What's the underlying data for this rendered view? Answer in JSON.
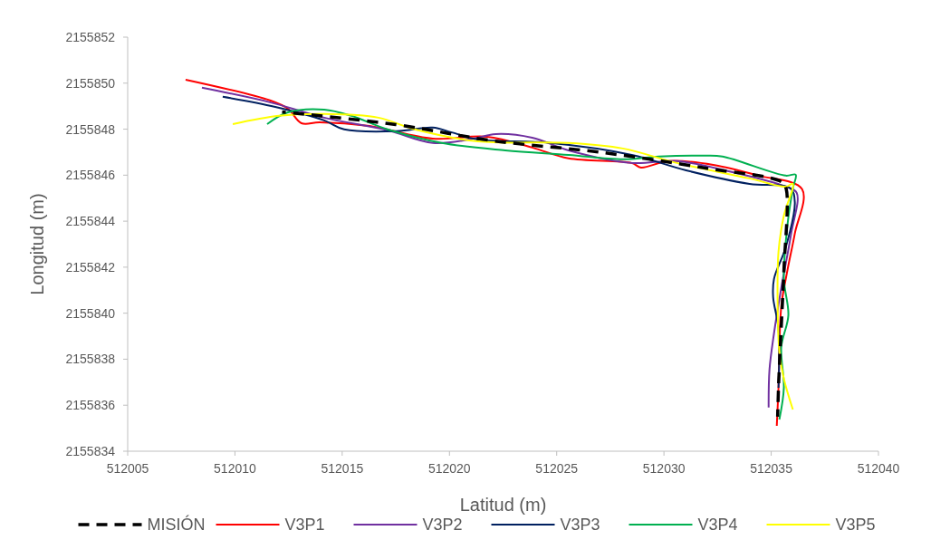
{
  "chart_data": {
    "type": "line",
    "xlabel": "Latitud (m)",
    "ylabel": "Longitud (m)",
    "xlim": [
      512005,
      512040
    ],
    "ylim": [
      2155834,
      2155852
    ],
    "xticks": [
      512005,
      512010,
      512015,
      512020,
      512025,
      512030,
      512035,
      512040
    ],
    "yticks": [
      2155834,
      2155836,
      2155838,
      2155840,
      2155842,
      2155844,
      2155846,
      2155848,
      2155850,
      2155852
    ],
    "grid": false,
    "legend": "bottom",
    "series": [
      {
        "name": "MISIÓN",
        "color": "#000000",
        "line_style": "dashed",
        "x": [
          512012.2,
          512017.5,
          512022,
          512027,
          512032,
          512035.5,
          512035.7,
          512035.6,
          512035.5,
          512035.35,
          512035.3
        ],
        "values": [
          2155848.75,
          2155848.2,
          2155847.5,
          2155847.0,
          2155846.3,
          2155845.7,
          2155845.4,
          2155842,
          2155840,
          2155837,
          2155835.5
        ]
      },
      {
        "name": "V3P1",
        "color": "#ff0000",
        "line_style": "solid",
        "x": [
          512007.7,
          512011.63,
          512012.47,
          512013.1,
          512013.95,
          512016.27,
          512019.22,
          512021.75,
          512023.86,
          512025.55,
          512028.5,
          512028.93,
          512030.19,
          512032.3,
          512034.41,
          512036.44,
          512036.1,
          512035.76,
          512035.47,
          512035.34,
          512035.26
        ],
        "values": [
          2155850.15,
          2155849.25,
          2155848.89,
          2155848.26,
          2155848.3,
          2155848.14,
          2155847.59,
          2155847.67,
          2155847.2,
          2155846.73,
          2155846.53,
          2155846.33,
          2155846.61,
          2155846.45,
          2155845.98,
          2155845.39,
          2155843.46,
          2155841.88,
          2155840.3,
          2155836.76,
          2155835.1
        ]
      },
      {
        "name": "V3P2",
        "color": "#7030a0",
        "line_style": "solid",
        "x": [
          512008.46,
          512011.63,
          512014.16,
          512017.11,
          512019.22,
          512020.91,
          512022.17,
          512023.86,
          512025.55,
          512028.5,
          512030.6,
          512033.15,
          512035.68,
          512036.19,
          512035.93,
          512035.47,
          512035.13,
          512034.92,
          512034.88
        ],
        "values": [
          2155849.8,
          2155849.17,
          2155848.5,
          2155847.95,
          2155847.4,
          2155847.55,
          2155847.79,
          2155847.63,
          2155847.08,
          2155846.53,
          2155846.61,
          2155846.14,
          2155845.5,
          2155845.23,
          2155843.46,
          2155841.1,
          2155839.12,
          2155837.55,
          2155835.9
        ]
      },
      {
        "name": "V3P3",
        "color": "#002060",
        "line_style": "solid",
        "x": [
          512009.43,
          512011.88,
          512014.16,
          512015.09,
          512017.54,
          512019.22,
          512020.07,
          512021.33,
          512024.7,
          512028.5,
          512031.03,
          512033.99,
          512035.89,
          512036.1,
          512035.68,
          512035.13,
          512035.09,
          512035.34,
          512035.34
        ],
        "values": [
          2155849.41,
          2155848.97,
          2155848.38,
          2155847.99,
          2155847.91,
          2155848.07,
          2155847.87,
          2155847.55,
          2155847.4,
          2155846.88,
          2155846.21,
          2155845.62,
          2155845.43,
          2155844.83,
          2155842.87,
          2155841.49,
          2155840.7,
          2155839.32,
          2155836.76
        ]
      },
      {
        "name": "V3P4",
        "color": "#00b050",
        "line_style": "solid",
        "x": [
          512011.5,
          512012.47,
          512014.16,
          512015.43,
          512017.11,
          512019.64,
          512022.6,
          512025.55,
          512028.08,
          512029.77,
          512031.88,
          512032.73,
          512035.68,
          512036.14,
          512036.01,
          512035.76,
          512035.59,
          512035.8,
          512035.47,
          512035.59,
          512035.38
        ],
        "values": [
          2155848.22,
          2155848.73,
          2155848.85,
          2155848.58,
          2155847.99,
          2155847.4,
          2155847.08,
          2155846.88,
          2155846.69,
          2155846.81,
          2155846.85,
          2155846.81,
          2155845.98,
          2155846.02,
          2155845.43,
          2155843.85,
          2155841.49,
          2155839.91,
          2155838.53,
          2155836.76,
          2155835.38
        ]
      },
      {
        "name": "V3P5",
        "color": "#ffff00",
        "line_style": "solid",
        "x": [
          512009.9,
          512012.05,
          512014.16,
          512016.69,
          512018.38,
          512021.33,
          512025.55,
          512028.08,
          512030.6,
          512033.99,
          512035.68,
          512036.01,
          512035.59,
          512035.34,
          512035.3,
          512035.38,
          512035.59,
          512036.01
        ],
        "values": [
          2155848.22,
          2155848.58,
          2155848.66,
          2155848.5,
          2155847.99,
          2155847.47,
          2155847.4,
          2155847.16,
          2155846.53,
          2155845.86,
          2155845.5,
          2155845.62,
          2155844.24,
          2155842.67,
          2155840.3,
          2155838.33,
          2155837.15,
          2155835.81
        ]
      }
    ]
  }
}
